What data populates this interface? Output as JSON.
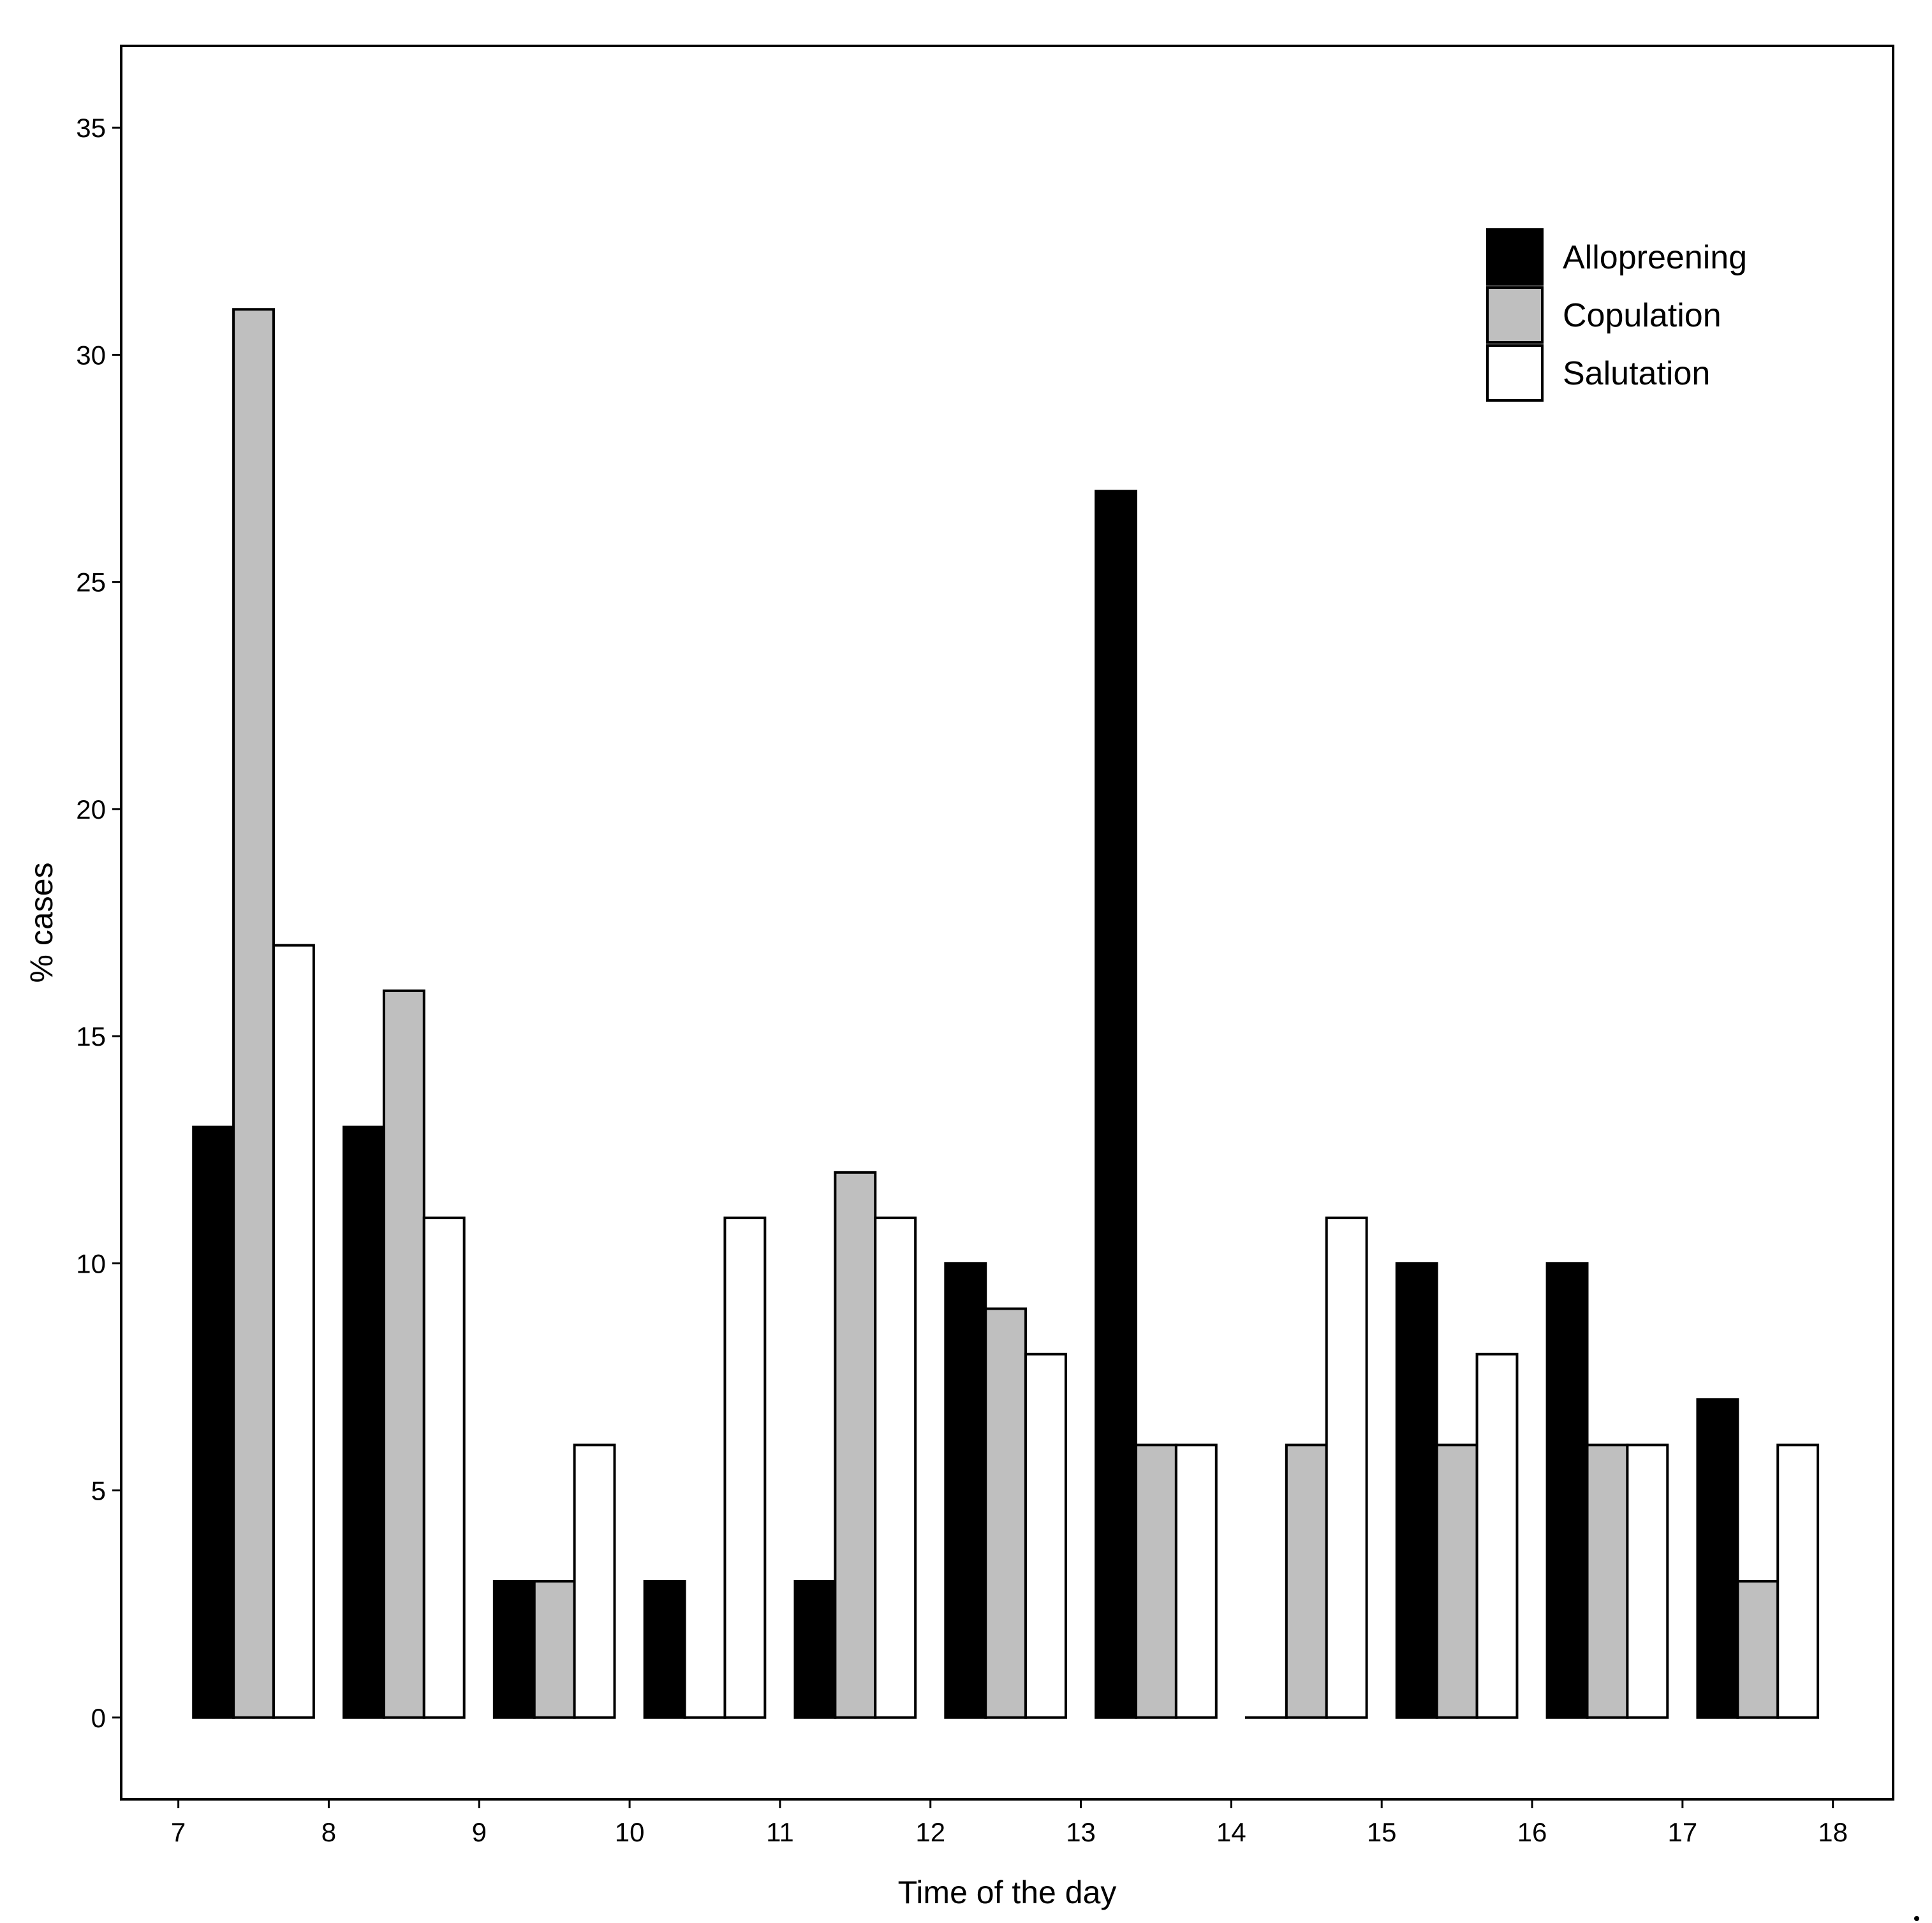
{
  "chart_data": {
    "type": "bar",
    "xlabel": "Time of the day",
    "ylabel": "% cases",
    "x_ticks": [
      "7",
      "8",
      "9",
      "10",
      "11",
      "12",
      "13",
      "14",
      "15",
      "16",
      "17",
      "18"
    ],
    "y_ticks": [
      "0",
      "5",
      "10",
      "15",
      "20",
      "25",
      "30",
      "35"
    ],
    "ylim": [
      -1.8,
      36.8
    ],
    "xlim": [
      6.62,
      18.4
    ],
    "bin_start": [
      7,
      8,
      9,
      10,
      11,
      12,
      13,
      14,
      15,
      16,
      17
    ],
    "grid": false,
    "legend_position": "top-right",
    "series": [
      {
        "name": "Allopreening",
        "color": "#000000",
        "values": [
          13,
          13,
          3,
          3,
          3,
          10,
          27,
          0,
          10,
          10,
          7
        ]
      },
      {
        "name": "Copulation",
        "color": "#bfbfbf",
        "values": [
          31,
          16,
          3,
          0,
          12,
          9,
          6,
          6,
          6,
          6,
          3
        ]
      },
      {
        "name": "Salutation",
        "color": "#ffffff",
        "values": [
          17,
          11,
          6,
          11,
          11,
          8,
          6,
          11,
          8,
          6,
          6
        ]
      }
    ]
  }
}
